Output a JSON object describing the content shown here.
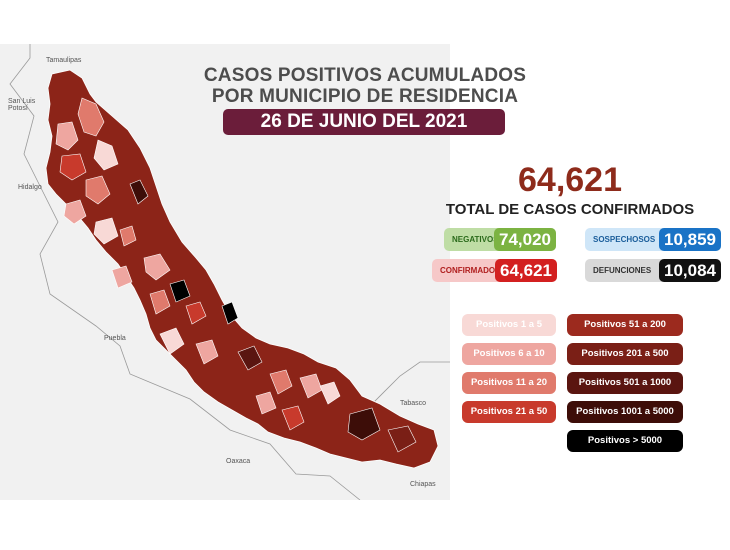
{
  "map": {
    "state_labels": [
      "Tamaulipas",
      "San Luis\nPotosí",
      "Hidalgo",
      "Puebla",
      "Oaxaca",
      "Tabasco",
      "Chiapas"
    ]
  },
  "header": {
    "title_line1": "CASOS POSITIVOS ACUMULADOS",
    "title_line2": "POR MUNICIPIO DE RESIDENCIA",
    "date": "26 DE JUNIO DEL 2021"
  },
  "totals": {
    "total": "64,621",
    "total_label": "TOTAL DE CASOS CONFIRMADOS"
  },
  "stats": {
    "negativos": {
      "label": "NEGATIVOS",
      "value": "74,020",
      "color": "#7cb342"
    },
    "sospechosos": {
      "label": "SOSPECHOSOS",
      "value": "10,859",
      "color": "#1a73c6"
    },
    "confirmados": {
      "label": "CONFIRMADOS",
      "value": "64,621",
      "color": "#d32020"
    },
    "defunciones": {
      "label": "DEFUNCIONES",
      "value": "10,084",
      "color": "#111111"
    }
  },
  "legend": [
    {
      "label": "Positivos 1 a 5",
      "color": "#f8d9d6"
    },
    {
      "label": "Positivos 6 a 10",
      "color": "#eea6a0"
    },
    {
      "label": "Positivos 11 a 20",
      "color": "#e07a6c"
    },
    {
      "label": "Positivos 21 a 50",
      "color": "#c83a2c"
    },
    {
      "label": "Positivos 51 a 200",
      "color": "#9c2a1e"
    },
    {
      "label": "Positivos 201 a 500",
      "color": "#7a1f16"
    },
    {
      "label": "Positivos 501 a 1000",
      "color": "#5a1510"
    },
    {
      "label": "Positivos 1001 a 5000",
      "color": "#3d0d08"
    },
    {
      "label": "Positivos > 5000",
      "color": "#000000"
    }
  ]
}
